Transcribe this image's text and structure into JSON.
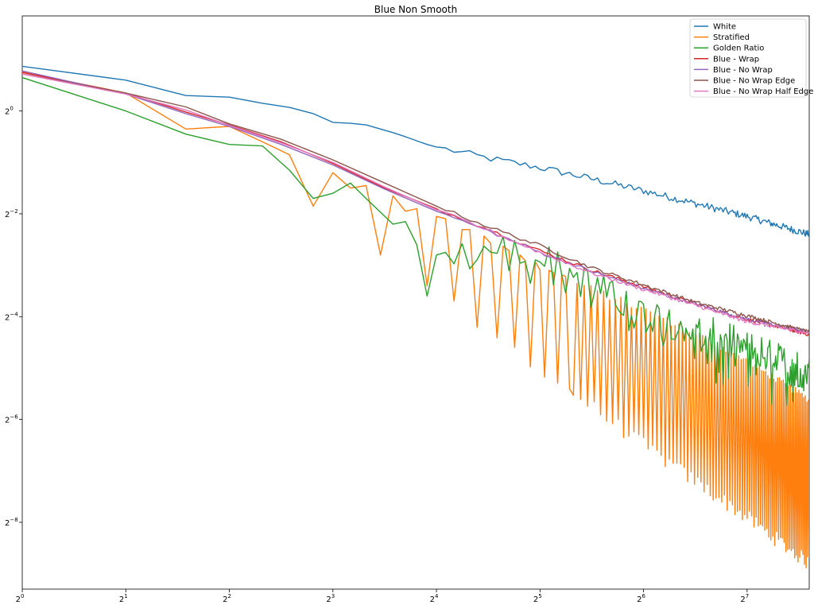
{
  "chart_data": {
    "type": "line",
    "title": "Blue Non Smooth",
    "xlabel": "",
    "ylabel": "",
    "xscale": "log2",
    "yscale": "log2",
    "xlim": [
      1,
      194
    ],
    "ylim_log2": [
      -9.3,
      1.85
    ],
    "x_ticks": [
      {
        "base": "2",
        "exp": "0"
      },
      {
        "base": "2",
        "exp": "1"
      },
      {
        "base": "2",
        "exp": "2"
      },
      {
        "base": "2",
        "exp": "3"
      },
      {
        "base": "2",
        "exp": "4"
      },
      {
        "base": "2",
        "exp": "5"
      },
      {
        "base": "2",
        "exp": "6"
      },
      {
        "base": "2",
        "exp": "7"
      }
    ],
    "y_ticks": [
      {
        "base": "2",
        "exp": "0"
      },
      {
        "base": "2",
        "exp": "−2"
      },
      {
        "base": "2",
        "exp": "−4"
      },
      {
        "base": "2",
        "exp": "−6"
      },
      {
        "base": "2",
        "exp": "−8"
      }
    ],
    "grid": false,
    "legend_position": "top-right",
    "series": [
      {
        "name": "White",
        "color": "#1f77b4",
        "points_log2": [
          [
            0,
            0.87
          ],
          [
            1,
            0.6
          ],
          [
            1.58,
            0.3
          ],
          [
            2,
            0.27
          ],
          [
            2.32,
            0.15
          ],
          [
            2.58,
            0.07
          ],
          [
            2.81,
            -0.05
          ],
          [
            3,
            -0.22
          ],
          [
            3.17,
            -0.24
          ],
          [
            3.32,
            -0.27
          ],
          [
            3.46,
            -0.35
          ],
          [
            3.58,
            -0.42
          ],
          [
            3.7,
            -0.5
          ],
          [
            3.81,
            -0.58
          ],
          [
            3.91,
            -0.65
          ],
          [
            4,
            -0.7
          ],
          [
            4.5,
            -0.92
          ],
          [
            5,
            -1.1
          ],
          [
            5.5,
            -1.32
          ],
          [
            6,
            -1.55
          ],
          [
            6.5,
            -1.8
          ],
          [
            7,
            -2.05
          ],
          [
            7.6,
            -2.4
          ]
        ],
        "jitter": 0.07
      },
      {
        "name": "Stratified",
        "color": "#ff7f0e",
        "points_log2": [
          [
            0,
            0.76
          ],
          [
            1,
            0.35
          ],
          [
            1.58,
            -0.35
          ],
          [
            2,
            -0.3
          ],
          [
            2.32,
            -0.6
          ],
          [
            2.58,
            -0.85
          ],
          [
            2.81,
            -1.85
          ],
          [
            3,
            -1.2
          ],
          [
            3.17,
            -1.5
          ],
          [
            3.32,
            -1.45
          ],
          [
            3.46,
            -2.8
          ],
          [
            3.58,
            -1.65
          ],
          [
            3.7,
            -1.95
          ],
          [
            3.81,
            -1.9
          ],
          [
            3.91,
            -3.4
          ],
          [
            4,
            -2.05
          ],
          [
            4.5,
            -2.55
          ],
          [
            5,
            -3.05
          ],
          [
            5.5,
            -3.5
          ],
          [
            6,
            -3.9
          ],
          [
            6.5,
            -4.35
          ],
          [
            7,
            -4.9
          ],
          [
            7.6,
            -5.65
          ]
        ],
        "dip_to_log2": [
          [
            4,
            -3.6
          ],
          [
            5,
            -5.0
          ],
          [
            6,
            -6.5
          ],
          [
            7,
            -7.9
          ],
          [
            7.6,
            -8.8
          ]
        ]
      },
      {
        "name": "Golden Ratio",
        "color": "#2ca02c",
        "points_log2": [
          [
            0,
            0.65
          ],
          [
            1,
            0.0
          ],
          [
            1.58,
            -0.45
          ],
          [
            2,
            -0.65
          ],
          [
            2.32,
            -0.68
          ],
          [
            2.58,
            -1.15
          ],
          [
            2.81,
            -1.7
          ],
          [
            3,
            -1.6
          ],
          [
            3.17,
            -1.4
          ],
          [
            3.32,
            -1.7
          ],
          [
            3.58,
            -2.2
          ],
          [
            3.7,
            -2.15
          ],
          [
            3.81,
            -2.6
          ],
          [
            3.91,
            -3.6
          ],
          [
            4,
            -2.8
          ],
          [
            4.5,
            -2.45
          ],
          [
            5,
            -2.85
          ],
          [
            5.5,
            -3.4
          ],
          [
            6,
            -3.9
          ],
          [
            6.5,
            -4.25
          ],
          [
            7,
            -4.6
          ],
          [
            7.6,
            -5.1
          ]
        ],
        "jitter": 0.35
      },
      {
        "name": "Blue - Wrap",
        "color": "#d62728",
        "points_log2": [
          [
            0,
            0.75
          ],
          [
            1,
            0.35
          ],
          [
            1.58,
            -0.02
          ],
          [
            2,
            -0.27
          ],
          [
            2.5,
            -0.6
          ],
          [
            3,
            -1.02
          ],
          [
            3.5,
            -1.5
          ],
          [
            4,
            -1.9
          ],
          [
            4.5,
            -2.3
          ],
          [
            5,
            -2.72
          ],
          [
            5.5,
            -3.1
          ],
          [
            6,
            -3.42
          ],
          [
            6.5,
            -3.75
          ],
          [
            7,
            -4.05
          ],
          [
            7.6,
            -4.35
          ]
        ],
        "jitter": 0.035
      },
      {
        "name": "Blue - No Wrap",
        "color": "#9467bd",
        "points_log2": [
          [
            0,
            0.78
          ],
          [
            1,
            0.33
          ],
          [
            1.58,
            -0.05
          ],
          [
            2,
            -0.3
          ],
          [
            2.5,
            -0.65
          ],
          [
            3,
            -1.05
          ],
          [
            3.5,
            -1.52
          ],
          [
            4,
            -1.95
          ],
          [
            4.5,
            -2.33
          ],
          [
            5,
            -2.75
          ],
          [
            5.5,
            -3.12
          ],
          [
            6,
            -3.45
          ],
          [
            6.5,
            -3.75
          ],
          [
            7,
            -4.05
          ],
          [
            7.6,
            -4.3
          ]
        ],
        "jitter": 0.035
      },
      {
        "name": "Blue - No Wrap Edge",
        "color": "#8c564b",
        "points_log2": [
          [
            0,
            0.72
          ],
          [
            1,
            0.35
          ],
          [
            1.58,
            0.08
          ],
          [
            2,
            -0.25
          ],
          [
            2.5,
            -0.55
          ],
          [
            3,
            -0.95
          ],
          [
            3.5,
            -1.4
          ],
          [
            4,
            -1.85
          ],
          [
            4.5,
            -2.25
          ],
          [
            5,
            -2.62
          ],
          [
            5.5,
            -3.05
          ],
          [
            6,
            -3.38
          ],
          [
            6.5,
            -3.72
          ],
          [
            7,
            -3.98
          ],
          [
            7.6,
            -4.3
          ]
        ],
        "jitter": 0.035
      },
      {
        "name": "Blue - No Wrap Half Edge",
        "color": "#e377c2",
        "points_log2": [
          [
            0,
            0.72
          ],
          [
            1,
            0.33
          ],
          [
            1.58,
            0.02
          ],
          [
            2,
            -0.28
          ],
          [
            2.5,
            -0.62
          ],
          [
            3,
            -1.0
          ],
          [
            3.5,
            -1.48
          ],
          [
            4,
            -1.92
          ],
          [
            4.5,
            -2.32
          ],
          [
            5,
            -2.75
          ],
          [
            5.5,
            -3.15
          ],
          [
            6,
            -3.47
          ],
          [
            6.5,
            -3.78
          ],
          [
            7,
            -4.1
          ],
          [
            7.6,
            -4.32
          ]
        ],
        "jitter": 0.035
      }
    ]
  }
}
